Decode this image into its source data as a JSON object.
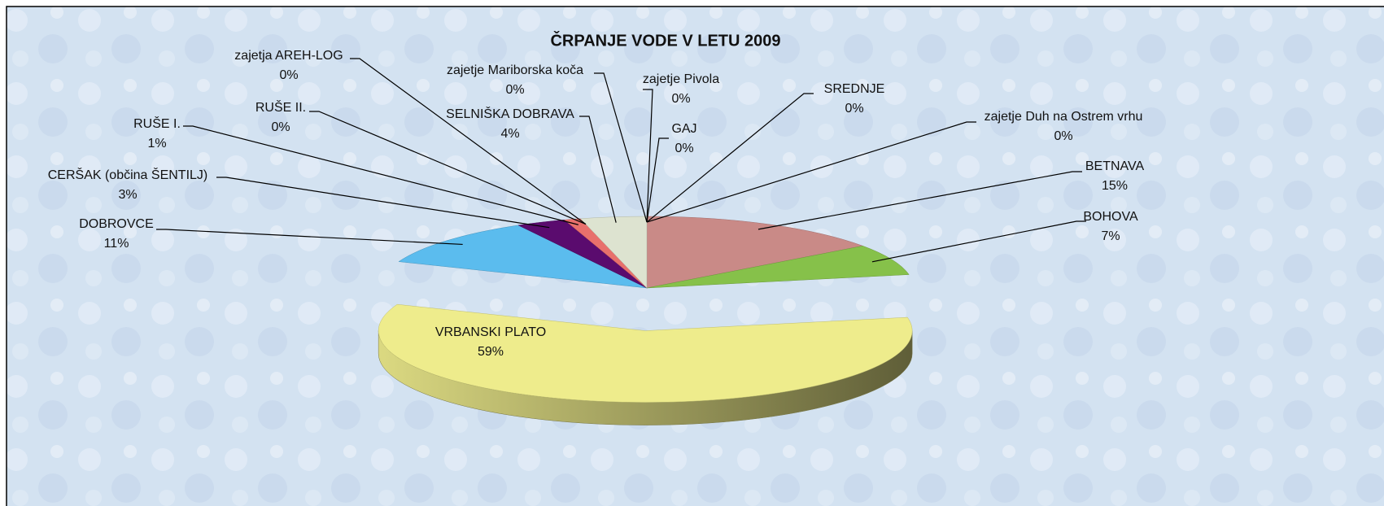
{
  "chart_data": {
    "type": "pie3d",
    "title": "ČRPANJE VODE V LETU 2009",
    "categories": [
      "BETNAVA",
      "BOHOVA",
      "VRBANSKI PLATO",
      "DOBROVCE",
      "CERŠAK (občina ŠENTILJ)",
      "RUŠE I.",
      "RUŠE II.",
      "zajetja AREH-LOG",
      "SELNIŠKA DOBRAVA",
      "zajetje Mariborska koča",
      "zajetje Pivola",
      "GAJ",
      "SREDNJE",
      "zajetje Duh na Ostrem vrhu"
    ],
    "values": [
      15,
      7,
      59,
      11,
      3,
      1,
      0,
      0,
      4,
      0,
      0,
      0,
      0,
      0
    ],
    "value_labels": [
      "15%",
      "7%",
      "59%",
      "11%",
      "3%",
      "1%",
      "0%",
      "0%",
      "4%",
      "0%",
      "0%",
      "0%",
      "0%",
      "0%"
    ],
    "colors": [
      "#c98a87",
      "#86c14a",
      "#eeec8c",
      "#5bbcee",
      "#5a0b6e",
      "#e8706c",
      "#7aa0c8",
      "#c0504d",
      "#dde3d0",
      "#8064a2",
      "#4f6cb8",
      "#6a5bb0",
      "#9a7ec8",
      "#7060b0"
    ]
  }
}
